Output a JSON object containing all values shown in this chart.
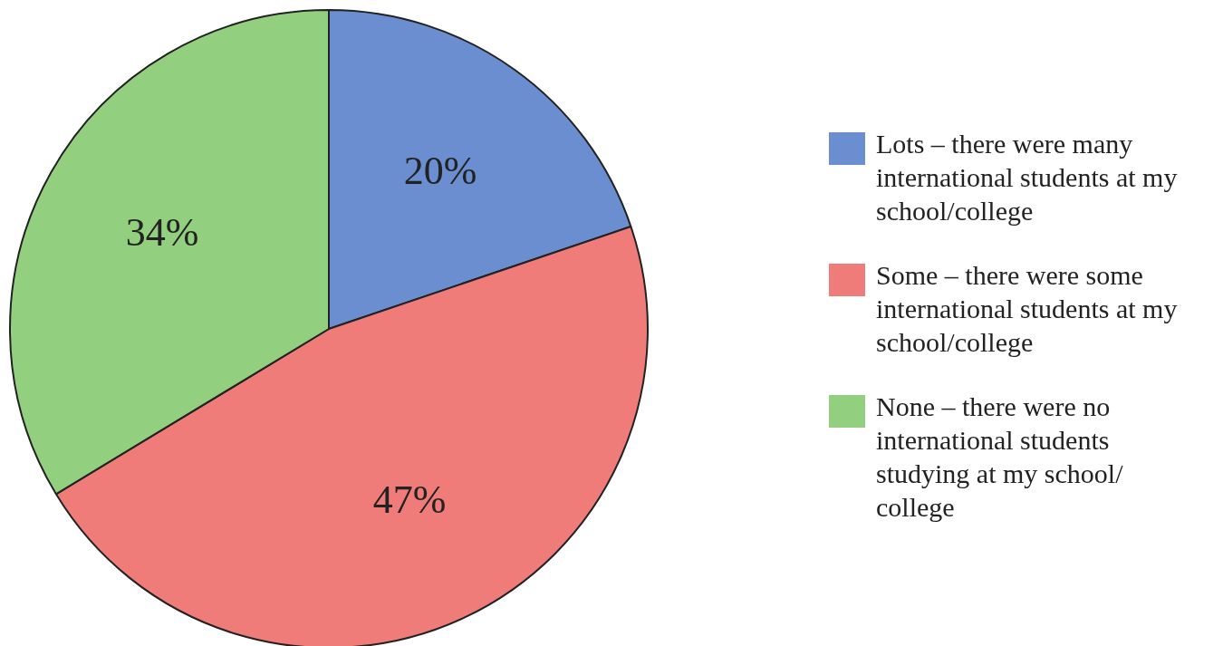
{
  "chart_data": {
    "type": "pie",
    "categories": [
      "Lots – there were many international students at my school/college",
      "Some – there were some international students at my school/college",
      "None – there were no international students studying at my school/ college"
    ],
    "values": [
      20,
      47,
      34
    ],
    "colors": [
      "#6a8ed0",
      "#f07c7a",
      "#92cf7e"
    ],
    "value_labels": [
      "20%",
      "47%",
      "34%"
    ],
    "legend": "right"
  }
}
